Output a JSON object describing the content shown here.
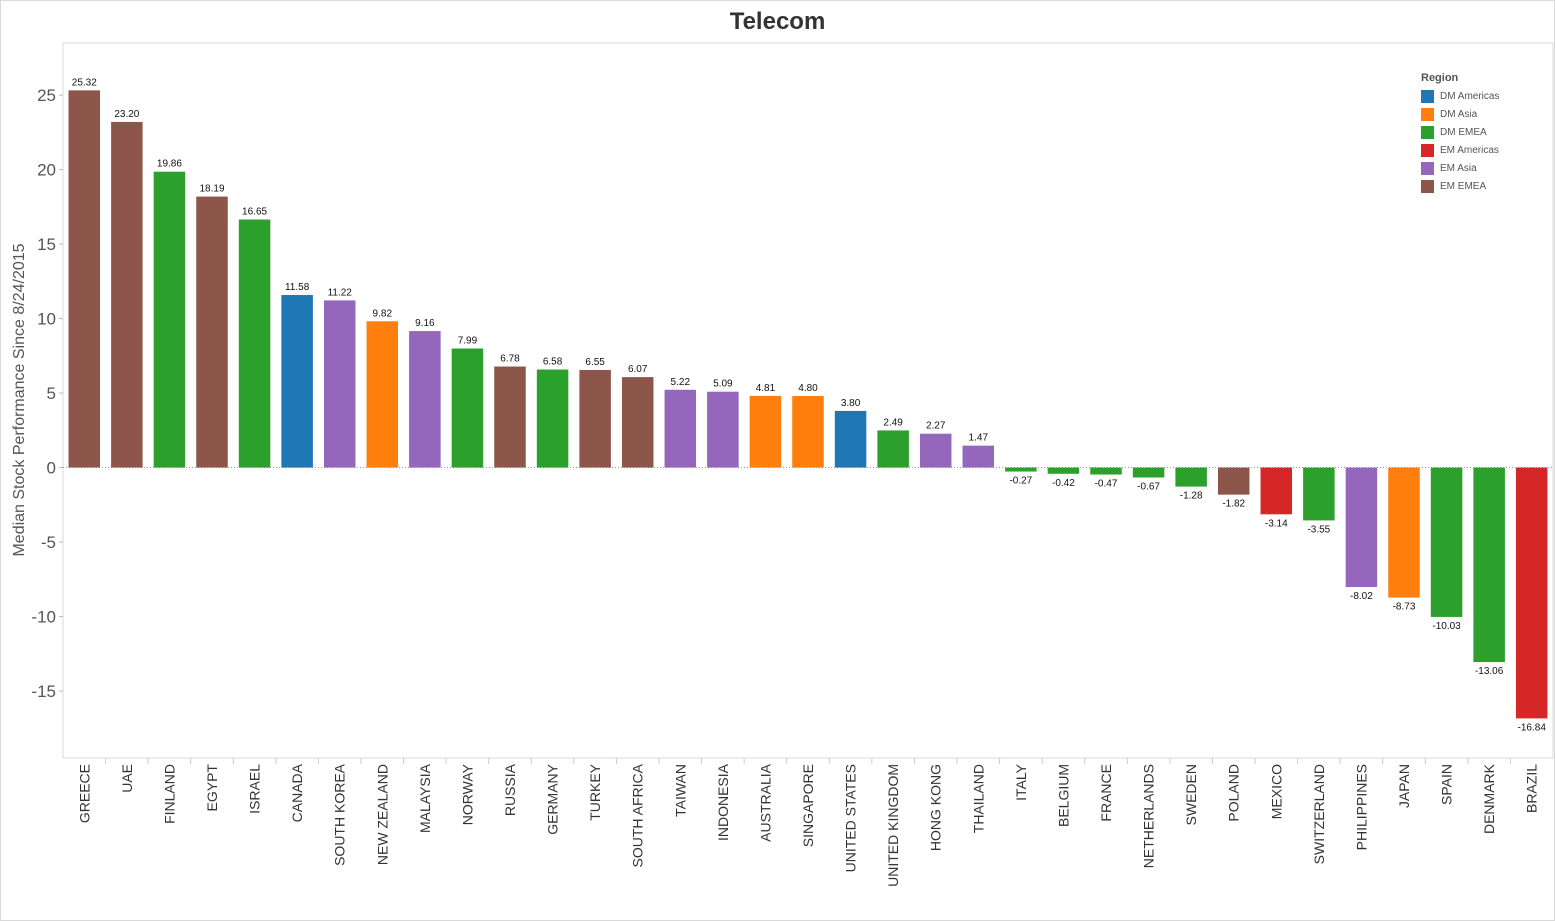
{
  "chart_data": {
    "type": "bar",
    "title": "Telecom",
    "xlabel": "",
    "ylabel": "Median Stock Performance Since 8/24/2015",
    "ylim": [
      -19.5,
      28.5
    ],
    "yticks": [
      -15,
      -10,
      -5,
      0,
      5,
      10,
      15,
      20,
      25
    ],
    "grid": false,
    "legend_position": "top-right",
    "legend": {
      "title": "Region",
      "entries": [
        {
          "name": "DM Americas",
          "color": "#1f77b4"
        },
        {
          "name": "DM Asia",
          "color": "#ff7f0e"
        },
        {
          "name": "DM EMEA",
          "color": "#2ca02c"
        },
        {
          "name": "EM Americas",
          "color": "#d62728"
        },
        {
          "name": "EM Asia",
          "color": "#9467bd"
        },
        {
          "name": "EM EMEA",
          "color": "#8c564b"
        }
      ]
    },
    "bars": [
      {
        "category": "GREECE",
        "value": 25.32,
        "label": "25.32",
        "region": "EM EMEA"
      },
      {
        "category": "UAE",
        "value": 23.2,
        "label": "23.20",
        "region": "EM EMEA"
      },
      {
        "category": "FINLAND",
        "value": 19.86,
        "label": "19.86",
        "region": "DM EMEA"
      },
      {
        "category": "EGYPT",
        "value": 18.19,
        "label": "18.19",
        "region": "EM EMEA"
      },
      {
        "category": "ISRAEL",
        "value": 16.65,
        "label": "16.65",
        "region": "DM EMEA"
      },
      {
        "category": "CANADA",
        "value": 11.58,
        "label": "11.58",
        "region": "DM Americas"
      },
      {
        "category": "SOUTH KOREA",
        "value": 11.22,
        "label": "11.22",
        "region": "EM Asia"
      },
      {
        "category": "NEW ZEALAND",
        "value": 9.82,
        "label": "9.82",
        "region": "DM Asia"
      },
      {
        "category": "MALAYSIA",
        "value": 9.16,
        "label": "9.16",
        "region": "EM Asia"
      },
      {
        "category": "NORWAY",
        "value": 7.99,
        "label": "7.99",
        "region": "DM EMEA"
      },
      {
        "category": "RUSSIA",
        "value": 6.78,
        "label": "6.78",
        "region": "EM EMEA"
      },
      {
        "category": "GERMANY",
        "value": 6.58,
        "label": "6.58",
        "region": "DM EMEA"
      },
      {
        "category": "TURKEY",
        "value": 6.55,
        "label": "6.55",
        "region": "EM EMEA"
      },
      {
        "category": "SOUTH AFRICA",
        "value": 6.07,
        "label": "6.07",
        "region": "EM EMEA"
      },
      {
        "category": "TAIWAN",
        "value": 5.22,
        "label": "5.22",
        "region": "EM Asia"
      },
      {
        "category": "INDONESIA",
        "value": 5.09,
        "label": "5.09",
        "region": "EM Asia"
      },
      {
        "category": "AUSTRALIA",
        "value": 4.81,
        "label": "4.81",
        "region": "DM Asia"
      },
      {
        "category": "SINGAPORE",
        "value": 4.8,
        "label": "4.80",
        "region": "DM Asia"
      },
      {
        "category": "UNITED STATES",
        "value": 3.8,
        "label": "3.80",
        "region": "DM Americas"
      },
      {
        "category": "UNITED KINGDOM",
        "value": 2.49,
        "label": "2.49",
        "region": "DM EMEA"
      },
      {
        "category": "HONG KONG",
        "value": 2.27,
        "label": "2.27",
        "region": "EM Asia"
      },
      {
        "category": "THAILAND",
        "value": 1.47,
        "label": "1.47",
        "region": "EM Asia"
      },
      {
        "category": "ITALY",
        "value": -0.27,
        "label": "-0.27",
        "region": "DM EMEA"
      },
      {
        "category": "BELGIUM",
        "value": -0.42,
        "label": "-0.42",
        "region": "DM EMEA"
      },
      {
        "category": "FRANCE",
        "value": -0.47,
        "label": "-0.47",
        "region": "DM EMEA"
      },
      {
        "category": "NETHERLANDS",
        "value": -0.67,
        "label": "-0.67",
        "region": "DM EMEA"
      },
      {
        "category": "SWEDEN",
        "value": -1.28,
        "label": "-1.28",
        "region": "DM EMEA"
      },
      {
        "category": "POLAND",
        "value": -1.82,
        "label": "-1.82",
        "region": "EM EMEA"
      },
      {
        "category": "MEXICO",
        "value": -3.14,
        "label": "-3.14",
        "region": "EM Americas"
      },
      {
        "category": "SWITZERLAND",
        "value": -3.55,
        "label": "-3.55",
        "region": "DM EMEA"
      },
      {
        "category": "PHILIPPINES",
        "value": -8.02,
        "label": "-8.02",
        "region": "EM Asia"
      },
      {
        "category": "JAPAN",
        "value": -8.73,
        "label": "-8.73",
        "region": "DM Asia"
      },
      {
        "category": "SPAIN",
        "value": -10.03,
        "label": "-10.03",
        "region": "DM EMEA"
      },
      {
        "category": "DENMARK",
        "value": -13.06,
        "label": "-13.06",
        "region": "DM EMEA"
      },
      {
        "category": "BRAZIL",
        "value": -16.84,
        "label": "-16.84",
        "region": "EM Americas"
      }
    ]
  }
}
